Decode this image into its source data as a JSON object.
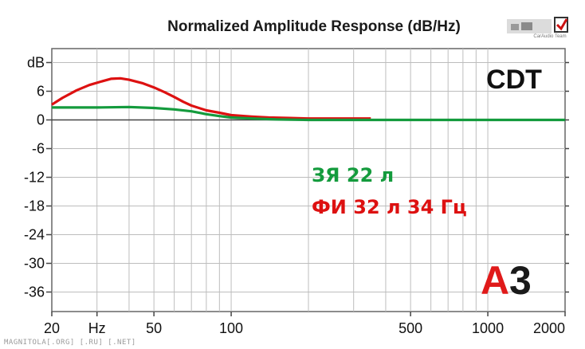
{
  "chart_data": {
    "type": "line",
    "title": "Normalized Amplitude Response (dB/Hz)",
    "ylabel": "dB",
    "xlabel": "Hz",
    "xscale": "log",
    "xlim": [
      20,
      2000
    ],
    "ylim": [
      -40,
      12
    ],
    "grid": true,
    "x_tick_labels": [
      "20",
      "Hz",
      "50",
      "100",
      "500",
      "1000",
      "2000"
    ],
    "y_tick_labels": [
      "dB",
      "6",
      "0",
      "-6",
      "-12",
      "-18",
      "-24",
      "-30",
      "-36"
    ],
    "series": [
      {
        "name": "ФИ 32 л 34 Гц",
        "color": "#dd1111",
        "x": [
          20,
          22,
          25,
          28,
          31,
          34,
          37,
          40,
          45,
          50,
          55,
          60,
          65,
          70,
          80,
          90,
          100,
          120,
          140,
          170,
          200,
          250,
          300,
          350,
          350
        ],
        "y": [
          3.2,
          4.6,
          6.2,
          7.3,
          8.0,
          8.6,
          8.7,
          8.4,
          7.7,
          6.8,
          5.8,
          4.8,
          3.8,
          3.0,
          2.0,
          1.5,
          1.0,
          0.7,
          0.5,
          0.4,
          0.3,
          0.3,
          0.3,
          0.3,
          0.3
        ]
      },
      {
        "name": "ЗЯ 22 л",
        "color": "#149b3d",
        "x": [
          20,
          30,
          40,
          50,
          60,
          70,
          80,
          90,
          100,
          120,
          150,
          200,
          300,
          500,
          1000,
          2000
        ],
        "y": [
          2.6,
          2.6,
          2.7,
          2.5,
          2.2,
          1.8,
          1.2,
          0.8,
          0.5,
          0.3,
          0.1,
          0.0,
          0.0,
          0.0,
          0.0,
          0.0
        ]
      }
    ]
  },
  "overlay": {
    "badge": "CDT",
    "logo_a": "А",
    "logo_3": "3",
    "logo_mini_text": "CarAudio Team",
    "watermark": "MAGNITOLA[.ORG] [.RU] [.NET]"
  }
}
